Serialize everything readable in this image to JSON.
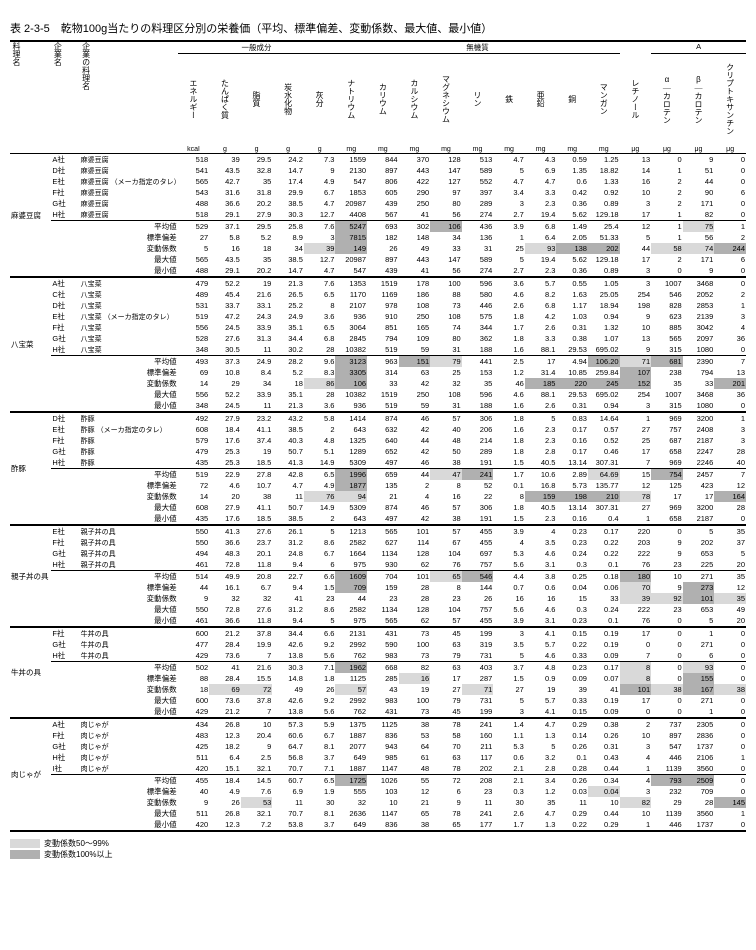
{
  "title": "表 2-3-5　乾物100g当たりの料理区分別の栄養価（平均、標準偏差、変動係数、最大値、最小値）",
  "group_headers": {
    "general": "一般成分",
    "mineral": "無機質",
    "vitA": "A"
  },
  "row_headers": [
    "料理名",
    "企業名",
    "企業の料理名"
  ],
  "col_headers": [
    "エネルギー",
    "たんぱく質",
    "脂質",
    "炭水化物",
    "灰分",
    "ナトリウム",
    "カリウム",
    "カルシウム",
    "マグネシウム",
    "リン",
    "鉄",
    "亜鉛",
    "銅",
    "マンガン",
    "レチノール",
    "α｜カロテン",
    "β｜カロテン",
    "クリプトキサンチン"
  ],
  "units": [
    "kcal",
    "g",
    "g",
    "g",
    "g",
    "mg",
    "mg",
    "mg",
    "mg",
    "mg",
    "mg",
    "mg",
    "mg",
    "mg",
    "μg",
    "μg",
    "μg",
    "μg"
  ],
  "stat_labels": [
    "平均値",
    "標準偏差",
    "変動係数",
    "最大値",
    "最小値"
  ],
  "legend": {
    "l50": "変動係数50～99%",
    "l100": "変動係数100%以上"
  },
  "groups": [
    {
      "dish": "麻婆豆腐",
      "rows": [
        [
          "A社",
          "麻婆豆腐",
          518,
          39.0,
          29.5,
          24.2,
          7.3,
          1559,
          844,
          370,
          128,
          513,
          4.7,
          4.3,
          0.59,
          1.25,
          13,
          0,
          9,
          0
        ],
        [
          "D社",
          "麻婆豆腐",
          541,
          43.5,
          32.8,
          14.7,
          9.0,
          2130,
          897,
          443,
          147,
          589,
          5.0,
          6.9,
          1.35,
          18.82,
          14,
          1,
          51,
          0
        ],
        [
          "E社",
          "麻婆豆腐\n（メーカ指定のタレ）",
          565,
          42.7,
          35.0,
          17.4,
          4.9,
          547,
          806,
          422,
          127,
          552,
          4.7,
          4.7,
          0.6,
          1.33,
          16,
          2,
          44,
          0
        ],
        [
          "F社",
          "麻婆豆腐",
          543,
          31.6,
          31.8,
          29.9,
          6.7,
          1853,
          605,
          290,
          97,
          397,
          3.4,
          3.3,
          0.42,
          0.92,
          10,
          2,
          90,
          6
        ],
        [
          "G社",
          "麻婆豆腐",
          488,
          36.6,
          20.2,
          38.5,
          4.7,
          20987,
          439,
          250,
          80,
          289,
          3.0,
          2.3,
          0.36,
          0.89,
          3,
          2,
          171,
          0
        ],
        [
          "H社",
          "麻婆豆腐",
          518,
          29.1,
          27.9,
          30.3,
          12.7,
          4408,
          567,
          41,
          56,
          274,
          2.7,
          19.4,
          5.62,
          129.18,
          17,
          1,
          82,
          0
        ]
      ],
      "stats": [
        [
          529,
          37.1,
          29.5,
          25.8,
          7.6,
          "5247",
          693,
          302,
          "106",
          436,
          3.9,
          6.8,
          1.49,
          25.4,
          12,
          1,
          "75",
          1
        ],
        [
          27,
          5.8,
          5.2,
          8.9,
          3.0,
          "7815",
          182,
          148,
          34,
          136,
          1.0,
          6.4,
          2.05,
          51.33,
          5,
          1,
          56,
          2
        ],
        [
          5,
          16,
          18,
          34,
          "39",
          "149",
          26,
          49,
          33,
          31,
          25,
          "93",
          "138",
          "202",
          44,
          "58",
          "74",
          "244"
        ],
        [
          565,
          43.5,
          35.0,
          38.5,
          12.7,
          20987,
          897,
          443,
          147,
          589,
          5.0,
          19.4,
          5.62,
          129.18,
          17,
          2,
          171,
          6
        ],
        [
          488,
          29.1,
          20.2,
          14.7,
          4.7,
          547,
          439,
          41,
          56,
          274,
          2.7,
          2.3,
          0.36,
          0.89,
          3,
          0,
          9,
          0
        ]
      ]
    },
    {
      "dish": "八宝菜",
      "rows": [
        [
          "A社",
          "八宝菜",
          479,
          52.2,
          19.0,
          21.3,
          7.6,
          1353,
          1519,
          178,
          100,
          596,
          3.6,
          5.7,
          0.55,
          1.05,
          3,
          1007,
          3468,
          0
        ],
        [
          "C社",
          "八宝菜",
          489,
          45.4,
          21.6,
          26.5,
          6.5,
          1170,
          1169,
          186,
          88,
          580,
          4.6,
          8.2,
          1.63,
          25.05,
          254,
          546,
          2052,
          2
        ],
        [
          "D社",
          "八宝菜",
          531,
          33.7,
          33.1,
          25.2,
          8.0,
          2107,
          978,
          108,
          73,
          446,
          2.6,
          6.8,
          1.17,
          18.94,
          198,
          828,
          2853,
          1
        ],
        [
          "E社",
          "八宝菜\n（メーカ指定のタレ）",
          519,
          47.2,
          24.3,
          24.9,
          3.6,
          936,
          910,
          250,
          108,
          575,
          1.8,
          4.2,
          1.03,
          0.94,
          9,
          623,
          2139,
          3
        ],
        [
          "F社",
          "八宝菜",
          556,
          24.5,
          33.9,
          35.1,
          6.5,
          3064,
          851,
          165,
          74,
          344,
          1.7,
          2.6,
          0.31,
          1.32,
          10,
          885,
          3042,
          4
        ],
        [
          "G社",
          "八宝菜",
          528,
          27.6,
          31.3,
          34.4,
          6.8,
          2845,
          794,
          109,
          80,
          362,
          1.8,
          3.3,
          0.38,
          1.07,
          13,
          565,
          2097,
          36
        ],
        [
          "H社",
          "八宝菜",
          348,
          30.5,
          11.0,
          30.2,
          28.0,
          10382,
          519,
          59,
          31,
          188,
          1.6,
          88.1,
          29.53,
          695.02,
          9,
          315,
          1080,
          0
        ]
      ],
      "stats": [
        [
          493,
          37.3,
          24.9,
          28.2,
          9.6,
          "3123",
          963,
          "151",
          "79",
          441,
          2.5,
          17.0,
          4.94,
          "106.20",
          "71",
          "681",
          2390,
          7
        ],
        [
          69,
          10.8,
          8.4,
          5.2,
          8.3,
          "3305",
          314,
          63,
          25,
          153,
          1.2,
          31.4,
          10.85,
          259.84,
          "107",
          238,
          794,
          13
        ],
        [
          14,
          29,
          34,
          18,
          "86",
          "106",
          33,
          42,
          32,
          35,
          46,
          "185",
          "220",
          "245",
          "152",
          35,
          33,
          "201"
        ],
        [
          556,
          52.2,
          33.9,
          35.1,
          28.0,
          10382,
          1519,
          250,
          108,
          596,
          4.6,
          88.1,
          29.53,
          695.02,
          254,
          1007,
          3468,
          36
        ],
        [
          348,
          24.5,
          11.0,
          21.3,
          3.6,
          936,
          519,
          59,
          31,
          188,
          1.6,
          2.6,
          0.31,
          0.94,
          3,
          315,
          1080,
          0
        ]
      ]
    },
    {
      "dish": "酢豚",
      "rows": [
        [
          "D社",
          "酢豚",
          492,
          27.9,
          23.2,
          43.2,
          5.8,
          1414,
          874,
          46,
          57,
          306,
          1.8,
          5.0,
          0.83,
          14.64,
          1,
          969,
          3200,
          1
        ],
        [
          "E社",
          "酢豚\n（メーカ指定のタレ）",
          608,
          18.4,
          41.1,
          38.5,
          2.0,
          643,
          632,
          42,
          40,
          206,
          1.6,
          2.3,
          0.17,
          0.57,
          27,
          757,
          2408,
          3
        ],
        [
          "F社",
          "酢豚",
          579,
          17.6,
          37.4,
          40.3,
          4.8,
          1325,
          640,
          44,
          48,
          214,
          1.8,
          2.3,
          0.16,
          0.52,
          25,
          687,
          2187,
          3
        ],
        [
          "G社",
          "酢豚",
          479,
          25.3,
          19.0,
          50.7,
          5.1,
          1289,
          652,
          42,
          50,
          289,
          1.8,
          2.8,
          0.17,
          0.46,
          17,
          658,
          2247,
          28
        ],
        [
          "H社",
          "酢豚",
          435,
          25.3,
          18.5,
          41.3,
          14.9,
          5309,
          497,
          46,
          38,
          191,
          1.5,
          40.5,
          13.14,
          307.31,
          7,
          969,
          2246,
          40
        ]
      ],
      "stats": [
        [
          519,
          22.9,
          27.8,
          42.8,
          6.5,
          "1996",
          659,
          44,
          "47",
          "241",
          1.7,
          10.6,
          2.89,
          "64.69",
          15,
          "754",
          2457,
          7
        ],
        [
          72,
          4.6,
          10.7,
          4.7,
          4.9,
          "1877",
          135,
          2,
          8,
          52,
          0.1,
          16.8,
          5.73,
          135.77,
          12,
          125,
          423,
          12
        ],
        [
          14,
          20,
          38,
          11,
          "76",
          "94",
          21,
          4,
          16,
          22,
          8,
          "159",
          "198",
          "210",
          "78",
          17,
          17,
          "164"
        ],
        [
          608,
          27.9,
          41.1,
          50.7,
          14.9,
          5309,
          874,
          46,
          57,
          306,
          1.8,
          40.5,
          13.14,
          307.31,
          27,
          969,
          3200,
          28
        ],
        [
          435,
          17.6,
          18.5,
          38.5,
          2.0,
          643,
          497,
          42,
          38,
          191,
          1.5,
          2.3,
          0.16,
          0.4,
          1,
          658,
          2187,
          0
        ]
      ]
    },
    {
      "dish": "親子丼の具",
      "rows": [
        [
          "E社",
          "親子丼の具",
          550,
          41.3,
          27.6,
          26.1,
          5.0,
          1213,
          565,
          101,
          57,
          455,
          3.9,
          4.0,
          0.23,
          0.17,
          220,
          0,
          5,
          35
        ],
        [
          "F社",
          "親子丼の具",
          550,
          36.6,
          23.7,
          31.2,
          8.6,
          2582,
          627,
          114,
          67,
          455,
          4.0,
          3.5,
          0.23,
          0.22,
          203,
          9,
          202,
          37
        ],
        [
          "G社",
          "親子丼の具",
          494,
          48.3,
          20.1,
          24.8,
          6.7,
          1664,
          1134,
          128,
          104,
          697,
          5.3,
          4.6,
          0.24,
          0.22,
          222,
          9,
          653,
          5
        ],
        [
          "H社",
          "親子丼の具",
          461,
          72.8,
          11.8,
          9.4,
          6.0,
          975,
          930,
          62,
          76,
          757,
          5.6,
          3.1,
          0.3,
          0.1,
          76,
          23,
          225,
          20
        ]
      ],
      "stats": [
        [
          514,
          49.9,
          20.8,
          22.7,
          6.6,
          "1609",
          704,
          101,
          "65",
          "546",
          4.4,
          3.8,
          0.25,
          0.18,
          "180",
          10,
          271,
          35
        ],
        [
          44,
          16.1,
          6.7,
          9.4,
          1.5,
          "709",
          159,
          28,
          8,
          144,
          0.7,
          0.6,
          0.04,
          0.06,
          "70",
          9,
          "273",
          12
        ],
        [
          9,
          32,
          32,
          41,
          23,
          44,
          23,
          28,
          23,
          26,
          16,
          16,
          15,
          33,
          "39",
          "92",
          "101",
          "35"
        ],
        [
          550,
          72.8,
          27.6,
          31.2,
          8.6,
          2582,
          1134,
          128,
          104,
          757,
          5.6,
          4.6,
          0.3,
          0.24,
          222,
          23,
          653,
          49
        ],
        [
          461,
          36.6,
          11.8,
          9.4,
          5.0,
          975,
          565,
          62,
          57,
          455,
          3.9,
          3.1,
          0.23,
          0.1,
          76,
          0,
          5,
          20
        ]
      ]
    },
    {
      "dish": "牛丼の具",
      "rows": [
        [
          "F社",
          "牛丼の具",
          600,
          21.2,
          37.8,
          34.4,
          6.6,
          2131,
          431,
          73,
          45,
          199,
          3.0,
          4.1,
          0.15,
          0.19,
          17,
          0,
          1,
          0
        ],
        [
          "G社",
          "牛丼の具",
          477,
          28.4,
          19.9,
          42.6,
          9.2,
          2992,
          590,
          100,
          63,
          319,
          3.5,
          5.7,
          0.22,
          0.19,
          0,
          0,
          271,
          0
        ],
        [
          "H社",
          "牛丼の具",
          429,
          73.6,
          7.0,
          13.8,
          5.6,
          762,
          983,
          73,
          79,
          731,
          5.0,
          4.6,
          0.33,
          0.09,
          7,
          0,
          6,
          0
        ]
      ],
      "stats": [
        [
          502,
          41.0,
          21.6,
          30.3,
          7.1,
          "1962",
          668,
          82,
          63,
          403,
          3.7,
          4.8,
          0.23,
          0.17,
          "8",
          0,
          "93",
          0
        ],
        [
          88,
          28.4,
          15.5,
          14.8,
          1.8,
          1125,
          285,
          "16",
          17,
          287,
          1.5,
          0.9,
          0.09,
          0.07,
          "8",
          0,
          "155",
          0
        ],
        [
          18,
          "69",
          "72",
          49,
          26,
          "57",
          43,
          19,
          27,
          "71",
          27,
          19,
          39,
          41,
          "101",
          "38",
          "167",
          "38"
        ],
        [
          600,
          73.6,
          37.8,
          42.6,
          9.2,
          2992,
          983,
          100,
          79,
          731,
          5.0,
          5.7,
          0.33,
          0.19,
          17,
          0,
          271,
          0
        ],
        [
          429,
          21.2,
          7.0,
          13.8,
          5.6,
          762,
          431,
          73,
          45,
          199,
          3.0,
          4.1,
          0.15,
          0.09,
          0,
          0,
          1,
          0
        ]
      ]
    },
    {
      "dish": "肉じゃが",
      "rows": [
        [
          "A社",
          "肉じゃが",
          434,
          26.8,
          10.0,
          57.3,
          5.9,
          1375,
          1125,
          38,
          78,
          241,
          1.4,
          4.7,
          0.29,
          0.38,
          2,
          737,
          2305,
          0
        ],
        [
          "F社",
          "肉じゃが",
          483,
          12.3,
          20.4,
          60.6,
          6.7,
          1887,
          836,
          53,
          58,
          160,
          1.1,
          1.3,
          0.14,
          0.26,
          10,
          897,
          2836,
          0
        ],
        [
          "G社",
          "肉じゃが",
          425,
          18.2,
          9.0,
          64.7,
          8.1,
          2077,
          943,
          64,
          70,
          211,
          5.3,
          5.0,
          0.26,
          0.31,
          3,
          547,
          1737,
          0
        ],
        [
          "H社",
          "肉じゃが",
          511,
          6.4,
          2.5,
          56.8,
          3.7,
          649,
          985,
          61,
          63,
          117,
          0.6,
          3.2,
          0.1,
          0.43,
          4,
          446,
          2106,
          1
        ],
        [
          "I社",
          "肉じゃが",
          420,
          15.1,
          32.1,
          70.7,
          7.1,
          1887,
          1147,
          48,
          78,
          202,
          2.1,
          2.8,
          0.28,
          0.44,
          1,
          1139,
          3560,
          0
        ]
      ],
      "stats": [
        [
          455,
          18.4,
          14.5,
          60.7,
          6.5,
          "1725",
          1026,
          55,
          72,
          208,
          2.1,
          3.4,
          0.26,
          0.34,
          4,
          "793",
          "2509",
          0
        ],
        [
          40,
          4.9,
          7.6,
          6.9,
          1.9,
          555,
          103,
          12,
          6,
          23,
          0.3,
          1.2,
          0.03,
          "0.04",
          3,
          232,
          709,
          0
        ],
        [
          9,
          26,
          "53",
          11,
          30,
          32,
          10,
          21,
          9,
          11,
          30,
          35,
          11,
          10,
          "82",
          29,
          28,
          "145"
        ],
        [
          511,
          26.8,
          32.1,
          70.7,
          8.1,
          2636,
          1147,
          65,
          78,
          241,
          2.6,
          4.7,
          0.29,
          0.44,
          10,
          1139,
          3560,
          1
        ],
        [
          420,
          12.3,
          7.2,
          53.8,
          3.7,
          649,
          836,
          38,
          65,
          177,
          1.7,
          1.3,
          0.22,
          0.29,
          1,
          446,
          1737,
          0
        ]
      ]
    }
  ]
}
